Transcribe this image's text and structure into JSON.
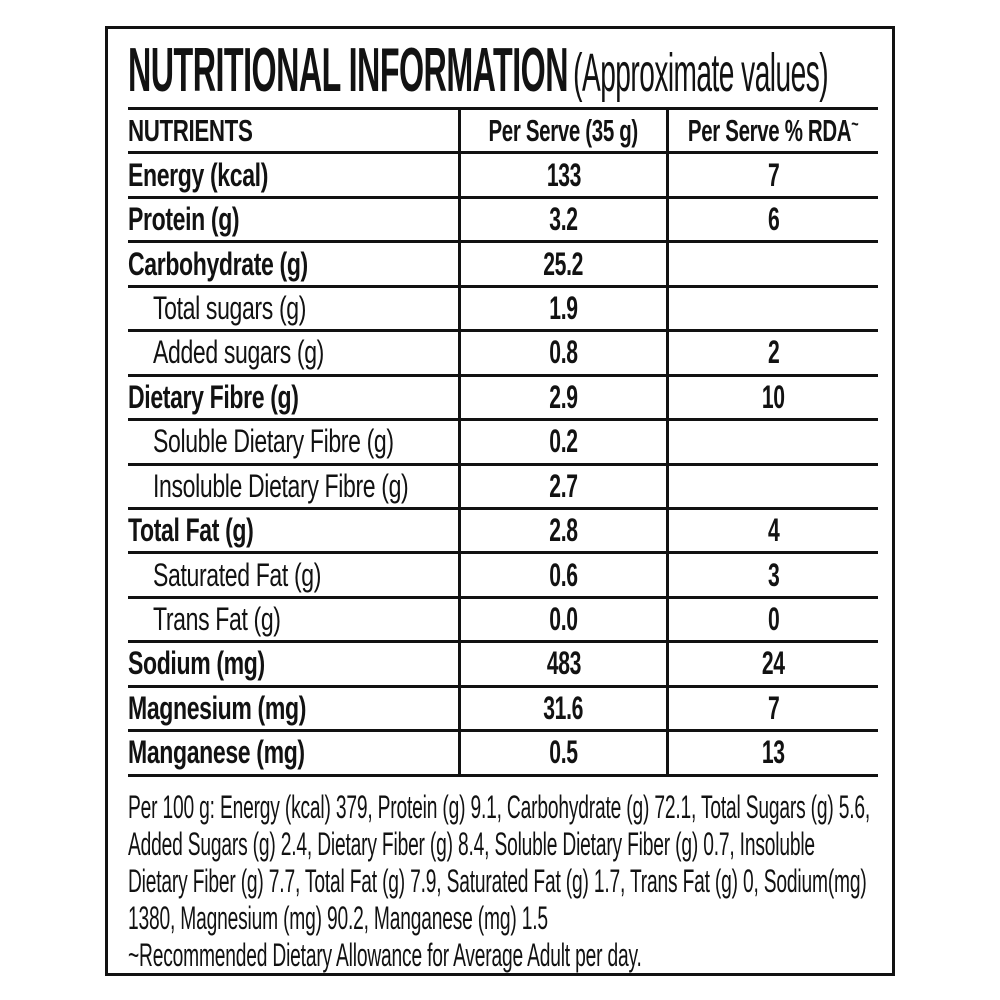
{
  "title": {
    "main": "NUTRITIONAL INFORMATION",
    "sub": "(Approximate values)"
  },
  "table": {
    "headers": {
      "nutrients": "NUTRIENTS",
      "per_serve": "Per Serve (35 g)",
      "rda": "Per Serve % RDA",
      "rda_sup": "~"
    },
    "rows": [
      {
        "label": "Energy (kcal)",
        "per_serve": "133",
        "rda": "7"
      },
      {
        "label": "Protein (g)",
        "per_serve": "3.2",
        "rda": "6"
      },
      {
        "label": "Carbohydrate (g)",
        "per_serve": "25.2",
        "rda": ""
      },
      {
        "label": "Total sugars (g)",
        "per_serve": "1.9",
        "rda": ""
      },
      {
        "label": "Added sugars (g)",
        "per_serve": "0.8",
        "rda": "2"
      },
      {
        "label": "Dietary Fibre (g)",
        "per_serve": "2.9",
        "rda": "10"
      },
      {
        "label": "Soluble Dietary Fibre (g)",
        "per_serve": "0.2",
        "rda": ""
      },
      {
        "label": "Insoluble Dietary Fibre (g)",
        "per_serve": "2.7",
        "rda": ""
      },
      {
        "label": "Total Fat (g)",
        "per_serve": "2.8",
        "rda": "4"
      },
      {
        "label": "Saturated Fat (g)",
        "per_serve": "0.6",
        "rda": "3"
      },
      {
        "label": "Trans Fat (g)",
        "per_serve": "0.0",
        "rda": "0"
      },
      {
        "label": "Sodium (mg)",
        "per_serve": "483",
        "rda": "24"
      },
      {
        "label": "Magnesium (mg)",
        "per_serve": "31.6",
        "rda": "7"
      },
      {
        "label": "Manganese (mg)",
        "per_serve": "0.5",
        "rda": "13"
      }
    ]
  },
  "footer": {
    "per_100g": "Per 100 g: Energy (kcal) 379, Protein (g) 9.1, Carbohydrate (g) 72.1, Total Sugars (g) 5.6, Added Sugars (g) 2.4, Dietary Fiber (g) 8.4, Soluble Dietary Fiber (g) 0.7, Insoluble Dietary Fiber (g) 7.7, Total Fat (g) 7.9, Saturated Fat (g) 1.7, Trans Fat (g) 0, Sodium(mg) 1380, Magnesium (mg) 90.2, Manganese (mg) 1.5",
    "rda_note": "~Recommended Dietary Allowance for Average Adult per day."
  },
  "colors": {
    "text": "#121212",
    "border": "#121212",
    "background": "#ffffff"
  }
}
